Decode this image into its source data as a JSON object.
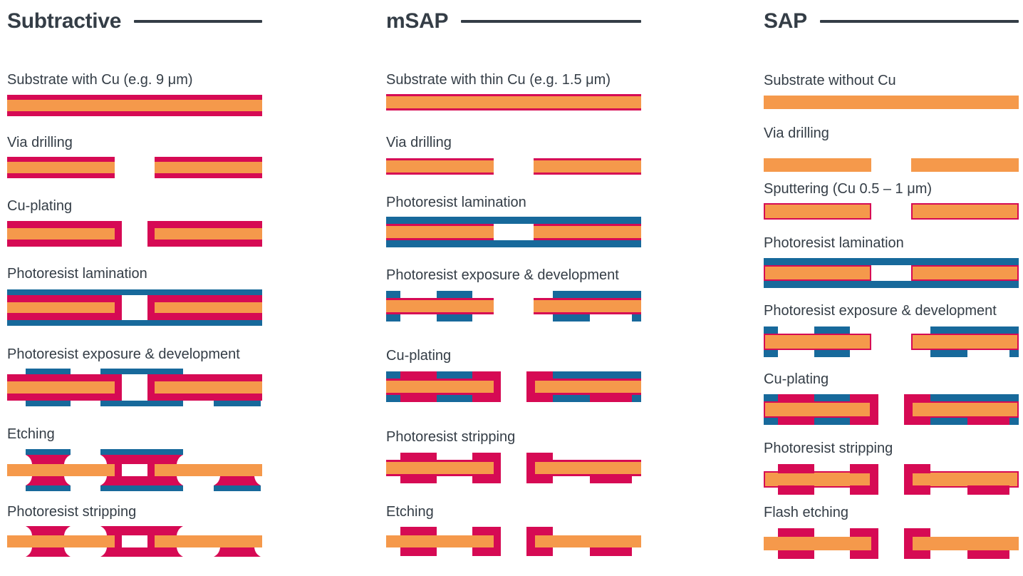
{
  "palette": {
    "substrate_orange": "#F5994B",
    "copper_crimson": "#D60A54",
    "photoresist_blue": "#17699B",
    "text_ink": "#343D46"
  },
  "columns": [
    {
      "title": "Subtractive",
      "steps": [
        {
          "label": "Substrate with Cu (e.g. 9 μm)",
          "figure": "sub-substrate"
        },
        {
          "label": "Via drilling",
          "figure": "sub-via"
        },
        {
          "label": "Cu-plating",
          "figure": "sub-plate"
        },
        {
          "label": "Photoresist lamination",
          "figure": "sub-lam"
        },
        {
          "label": "Photoresist exposure & development",
          "figure": "sub-exp"
        },
        {
          "label": "Etching",
          "figure": "sub-etch"
        },
        {
          "label": "Photoresist stripping",
          "figure": "sub-strip"
        }
      ]
    },
    {
      "title": "mSAP",
      "steps": [
        {
          "label": "Substrate with thin Cu (e.g. 1.5 μm)",
          "figure": "msap-substrate"
        },
        {
          "label": "Via drilling",
          "figure": "msap-via"
        },
        {
          "label": "Photoresist lamination",
          "figure": "msap-lam"
        },
        {
          "label": "Photoresist exposure & development",
          "figure": "msap-exp"
        },
        {
          "label": "Cu-plating",
          "figure": "msap-plate"
        },
        {
          "label": "Photoresist stripping",
          "figure": "msap-strip"
        },
        {
          "label": "Etching",
          "figure": "msap-etch"
        }
      ]
    },
    {
      "title": "SAP",
      "steps": [
        {
          "label": "Substrate without Cu",
          "figure": "sap-substrate"
        },
        {
          "label": "Via drilling",
          "figure": "sap-via"
        },
        {
          "label": "Sputtering (Cu 0.5 – 1 μm)",
          "figure": "sap-sputter"
        },
        {
          "label": "Photoresist lamination",
          "figure": "sap-lam"
        },
        {
          "label": "Photoresist exposure & development",
          "figure": "sap-exp"
        },
        {
          "label": "Cu-plating",
          "figure": "sap-plate"
        },
        {
          "label": "Photoresist stripping",
          "figure": "sap-strip"
        },
        {
          "label": "Flash etching",
          "figure": "sap-flash"
        }
      ]
    }
  ]
}
